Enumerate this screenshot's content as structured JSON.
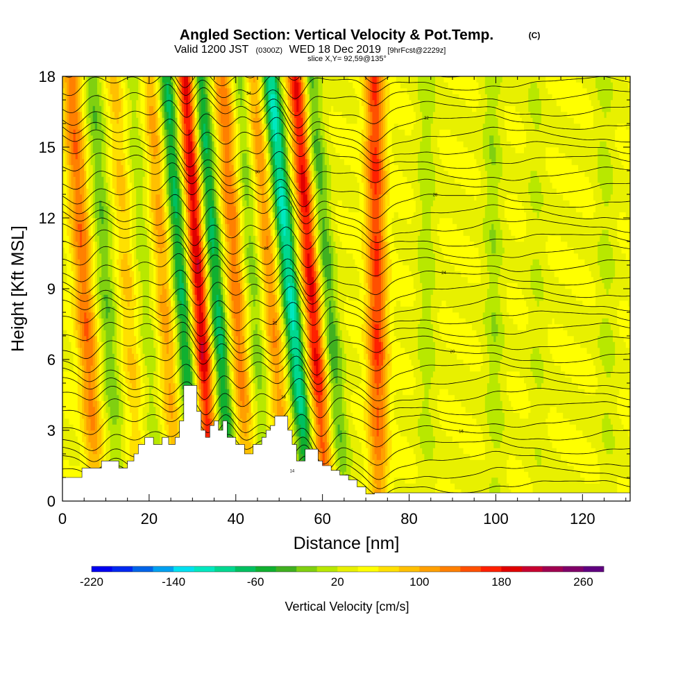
{
  "chart_data": {
    "type": "heatmap",
    "title": "Angled Section: Vertical Velocity & Pot.Temp.",
    "title_tag": "(C)",
    "subtitle": {
      "valid": "Valid 1200 JST",
      "utc": "(0300Z)",
      "date": "WED 18 Dec 2019",
      "fcst": "[9hrFcst@2229z]"
    },
    "slice_label": "slice X,Y= 92,59@135°",
    "xlabel": "Distance [nm]",
    "ylabel": "Height [Kft MSL]",
    "xlim": [
      0,
      131
    ],
    "ylim": [
      0,
      18
    ],
    "xticks": [
      "0",
      "20",
      "40",
      "60",
      "80",
      "100",
      "120"
    ],
    "yticks": [
      "0",
      "3",
      "6",
      "9",
      "12",
      "15",
      "18"
    ],
    "colorbar": {
      "label": "Vertical Velocity [cm/s]",
      "min": -220,
      "max": 280,
      "step": 20,
      "ticks": [
        "-220",
        "-140",
        "-60",
        "20",
        "100",
        "180",
        "260"
      ],
      "colors": [
        "#0000f0",
        "#0028f0",
        "#0064e8",
        "#00a0f0",
        "#00e0f0",
        "#00e8c0",
        "#00d890",
        "#00c060",
        "#10b030",
        "#40b020",
        "#80d010",
        "#b8e800",
        "#e8f000",
        "#ffff00",
        "#ffe000",
        "#ffc000",
        "#ffa000",
        "#ff8000",
        "#ff5000",
        "#ff2000",
        "#e00000",
        "#c80030",
        "#a00050",
        "#800068",
        "#600080"
      ]
    },
    "velocity_bands": [
      {
        "x_bottom": 8,
        "x_top": 2,
        "w": 120,
        "amp": 0.8,
        "k": 3
      },
      {
        "x_bottom": 13,
        "x_top": 7,
        "w": 70,
        "amp": -0.8,
        "k": 3
      },
      {
        "x_bottom": 18,
        "x_top": 12,
        "w": 55,
        "amp": 0.8,
        "k": 3
      },
      {
        "x_bottom": 22,
        "x_top": 16,
        "w": 50,
        "amp": -0.7,
        "k": 3
      },
      {
        "x_bottom": 26.5,
        "x_top": 20.5,
        "w": 50,
        "amp": 1.4,
        "k": 3
      },
      {
        "x_bottom": 31,
        "x_top": 24,
        "w": 45,
        "amp": -2.4,
        "k": 3
      },
      {
        "x_bottom": 34.5,
        "x_top": 28.5,
        "w": 45,
        "amp": 3.7,
        "k": 3
      },
      {
        "x_bottom": 39,
        "x_top": 31.5,
        "w": 38,
        "amp": -3,
        "k": 3
      },
      {
        "x_bottom": 43,
        "x_top": 37,
        "w": 50,
        "amp": 1.9,
        "k": 3
      },
      {
        "x_bottom": 47,
        "x_top": 41,
        "w": 45,
        "amp": -1.2,
        "k": 3
      },
      {
        "x_bottom": 52,
        "x_top": 44,
        "w": 50,
        "amp": 1.6,
        "k": 3
      },
      {
        "x_bottom": 57,
        "x_top": 48,
        "w": 40,
        "amp": -3.6,
        "k": 3
      },
      {
        "x_bottom": 61,
        "x_top": 54,
        "w": 60,
        "amp": 2.5,
        "k": 3
      },
      {
        "x_bottom": 65,
        "x_top": 57,
        "w": 60,
        "amp": -1.3,
        "k": 3
      },
      {
        "x_bottom": 73,
        "x_top": 72,
        "w": 110,
        "amp": 1.1,
        "k": 3
      },
      {
        "x_bottom": 84,
        "x_top": 84,
        "w": 80,
        "amp": -0.4,
        "k": 3
      },
      {
        "x_bottom": 100,
        "x_top": 99,
        "w": 90,
        "amp": -0.4,
        "k": 3
      },
      {
        "x_bottom": 110,
        "x_top": 109,
        "w": 40,
        "amp": -0.5,
        "k": 3
      },
      {
        "x_bottom": 126,
        "x_top": 125,
        "w": 50,
        "amp": -0.5,
        "k": 3
      }
    ],
    "terrain": [
      [
        0,
        1
      ],
      [
        4.5,
        1
      ],
      [
        4.5,
        1.4
      ],
      [
        9,
        1.4
      ],
      [
        9,
        1.7
      ],
      [
        13,
        1.7
      ],
      [
        13,
        1.4
      ],
      [
        15,
        1.4
      ],
      [
        15,
        1.7
      ],
      [
        16.5,
        1.7
      ],
      [
        16.5,
        2
      ],
      [
        17.5,
        2
      ],
      [
        17.5,
        2.4
      ],
      [
        19,
        2.4
      ],
      [
        19,
        2.7
      ],
      [
        21,
        2.7
      ],
      [
        21,
        2.4
      ],
      [
        23,
        2.4
      ],
      [
        23,
        2.7
      ],
      [
        24.5,
        2.7
      ],
      [
        24.5,
        2.4
      ],
      [
        26,
        2.4
      ],
      [
        26,
        2.7
      ],
      [
        27,
        2.7
      ],
      [
        27,
        3.4
      ],
      [
        28,
        3.4
      ],
      [
        28,
        4.9
      ],
      [
        31,
        4.9
      ],
      [
        31,
        3.8
      ],
      [
        32,
        3.8
      ],
      [
        32,
        3
      ],
      [
        33,
        3
      ],
      [
        33,
        2.7
      ],
      [
        34,
        2.7
      ],
      [
        34,
        3.2
      ],
      [
        35,
        3.2
      ],
      [
        35,
        3.4
      ],
      [
        36,
        3.4
      ],
      [
        36,
        3
      ],
      [
        37,
        3
      ],
      [
        37,
        3.4
      ],
      [
        38,
        3.4
      ],
      [
        38,
        2.7
      ],
      [
        40,
        2.7
      ],
      [
        40,
        2.4
      ],
      [
        42,
        2.4
      ],
      [
        42,
        2
      ],
      [
        44,
        2
      ],
      [
        44,
        2.4
      ],
      [
        46,
        2.4
      ],
      [
        46,
        2.7
      ],
      [
        47,
        2.7
      ],
      [
        47,
        3
      ],
      [
        48,
        3
      ],
      [
        48,
        3.2
      ],
      [
        49,
        3.2
      ],
      [
        49,
        3.6
      ],
      [
        52,
        3.6
      ],
      [
        52,
        3
      ],
      [
        53,
        3
      ],
      [
        53,
        2.4
      ],
      [
        54,
        2.4
      ],
      [
        54,
        1.7
      ],
      [
        56,
        1.7
      ],
      [
        56,
        2.2
      ],
      [
        59,
        2.2
      ],
      [
        59,
        1.7
      ],
      [
        60,
        1.7
      ],
      [
        60,
        1.5
      ],
      [
        62,
        1.5
      ],
      [
        62,
        1.3
      ],
      [
        64,
        1.3
      ],
      [
        64,
        1.1
      ],
      [
        66,
        1.1
      ],
      [
        66,
        0.9
      ],
      [
        68,
        0.9
      ],
      [
        68,
        0.6
      ],
      [
        70,
        0.6
      ],
      [
        70,
        0.3
      ],
      [
        72,
        0.3
      ],
      [
        72,
        0.35
      ],
      [
        131,
        0.35
      ],
      [
        131,
        0
      ],
      [
        0,
        0
      ]
    ],
    "isentropes": {
      "count": 34,
      "surface_labels": [
        "18",
        "18"
      ],
      "labels": [
        "14",
        "16",
        "18",
        "20",
        "22",
        "24",
        "26",
        "28",
        "30",
        "32",
        "34",
        "36"
      ]
    }
  }
}
